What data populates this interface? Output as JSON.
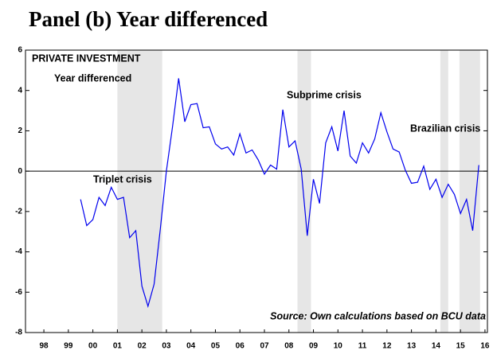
{
  "chart_data": {
    "type": "line",
    "title": "Panel (b) Year differenced",
    "annotations": [
      "PRIVATE INVESTMENT",
      "Year differenced",
      "Triplet crisis",
      "Subprime crisis",
      "Brazilian crisis",
      "Source: Own calculations based on BCU data"
    ],
    "xlim": [
      1997.75,
      2016.6
    ],
    "ylim": [
      -8,
      6
    ],
    "yticks": [
      -8,
      -6,
      -4,
      -2,
      0,
      2,
      4,
      6
    ],
    "xticks": [
      {
        "value": 1998.5,
        "label": "98"
      },
      {
        "value": 1999.5,
        "label": "99"
      },
      {
        "value": 2000.5,
        "label": "00"
      },
      {
        "value": 2001.5,
        "label": "01"
      },
      {
        "value": 2002.5,
        "label": "02"
      },
      {
        "value": 2003.5,
        "label": "03"
      },
      {
        "value": 2004.5,
        "label": "04"
      },
      {
        "value": 2005.5,
        "label": "05"
      },
      {
        "value": 2006.5,
        "label": "06"
      },
      {
        "value": 2007.5,
        "label": "07"
      },
      {
        "value": 2008.5,
        "label": "08"
      },
      {
        "value": 2009.5,
        "label": "09"
      },
      {
        "value": 2010.5,
        "label": "10"
      },
      {
        "value": 2011.5,
        "label": "11"
      },
      {
        "value": 2012.5,
        "label": "12"
      },
      {
        "value": 2013.5,
        "label": "13"
      },
      {
        "value": 2014.5,
        "label": "14"
      },
      {
        "value": 2015.5,
        "label": "15"
      },
      {
        "value": 2016.5,
        "label": "16"
      }
    ],
    "shaded_regions": [
      [
        2001.5,
        2003.33
      ],
      [
        2008.85,
        2009.4
      ],
      [
        2014.68,
        2015.0
      ],
      [
        2015.46,
        2016.3
      ]
    ],
    "shade_color": "#e6e6e6",
    "zero_line": true,
    "x": [
      2000.0,
      2000.25,
      2000.5,
      2000.75,
      2001.0,
      2001.25,
      2001.5,
      2001.75,
      2002.0,
      2002.25,
      2002.5,
      2002.75,
      2003.0,
      2003.25,
      2003.5,
      2003.75,
      2004.0,
      2004.25,
      2004.5,
      2004.75,
      2005.0,
      2005.25,
      2005.5,
      2005.75,
      2006.0,
      2006.25,
      2006.5,
      2006.75,
      2007.0,
      2007.25,
      2007.5,
      2007.75,
      2008.0,
      2008.25,
      2008.5,
      2008.75,
      2009.0,
      2009.25,
      2009.5,
      2009.75,
      2010.0,
      2010.25,
      2010.5,
      2010.75,
      2011.0,
      2011.25,
      2011.5,
      2011.75,
      2012.0,
      2012.25,
      2012.5,
      2012.75,
      2013.0,
      2013.25,
      2013.5,
      2013.75,
      2014.0,
      2014.25,
      2014.5,
      2014.75,
      2015.0,
      2015.25,
      2015.5,
      2015.75,
      2016.0,
      2016.25
    ],
    "series": [
      {
        "name": "Private investment",
        "color": "#0000ee",
        "values": [
          -1.4,
          -2.7,
          -2.4,
          -1.3,
          -1.7,
          -0.8,
          -1.4,
          -1.3,
          -3.3,
          -2.95,
          -5.7,
          -6.7,
          -5.6,
          -2.9,
          0.0,
          2.2,
          4.6,
          2.45,
          3.3,
          3.35,
          2.15,
          2.2,
          1.35,
          1.1,
          1.2,
          0.8,
          1.85,
          0.9,
          1.05,
          0.55,
          -0.15,
          0.3,
          0.1,
          3.05,
          1.2,
          1.5,
          0.1,
          -3.2,
          -0.4,
          -1.6,
          1.4,
          2.2,
          1.0,
          3.0,
          0.75,
          0.4,
          1.4,
          0.9,
          1.6,
          2.9,
          1.95,
          1.1,
          0.95,
          0.05,
          -0.6,
          -0.55,
          0.25,
          -0.9,
          -0.4,
          -1.3,
          -0.65,
          -1.15,
          -2.1,
          -1.4,
          -2.95,
          0.3
        ]
      }
    ]
  }
}
